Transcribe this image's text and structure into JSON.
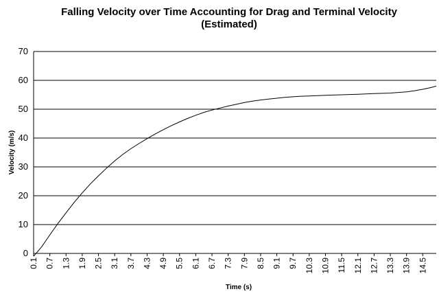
{
  "chart_data": {
    "type": "line",
    "title_line1": "Falling Velocity over Time Accounting for Drag and Terminal Velocity",
    "title_line2": "(Estimated)",
    "xlabel": "Time (s)",
    "ylabel": "Velocity (m/s)",
    "ylim": [
      0,
      70
    ],
    "y_ticks": [
      "0",
      "10",
      "20",
      "30",
      "40",
      "50",
      "60",
      "70"
    ],
    "grid": "horizontal",
    "legend": "none",
    "x_tick_labels": [
      "0.1",
      "0.7",
      "1.3",
      "1.9",
      "2.5",
      "3.1",
      "3.7",
      "4.3",
      "4.9",
      "5.5",
      "6.1",
      "6.7",
      "7.3",
      "7.9",
      "8.5",
      "9.1",
      "9.7",
      "10.3",
      "10.9",
      "11.5",
      "12.1",
      "12.7",
      "13.3",
      "13.9",
      "14.5"
    ],
    "line_color": "#000000",
    "series": [
      {
        "x": [
          0.1,
          0.4,
          0.7,
          1.0,
          1.3,
          1.6,
          1.9,
          2.2,
          2.5,
          2.8,
          3.1,
          3.4,
          3.7,
          4.0,
          4.3,
          4.6,
          4.9,
          5.2,
          5.5,
          5.8,
          6.1,
          6.4,
          6.7,
          7.0,
          7.3,
          7.6,
          7.9,
          8.2,
          8.5,
          8.8,
          9.1,
          9.4,
          9.7,
          10.0,
          10.3,
          10.6,
          10.9,
          11.2,
          11.5,
          11.8,
          12.1,
          12.4,
          12.7,
          13.0,
          13.3,
          13.6,
          13.9,
          14.2,
          14.5,
          14.8,
          15.0
        ],
        "y": [
          -1,
          2.3,
          6.4,
          10.4,
          14.1,
          17.7,
          21.0,
          24.1,
          26.9,
          29.6,
          32.1,
          34.3,
          36.3,
          38.1,
          39.8,
          41.4,
          42.9,
          44.3,
          45.6,
          46.8,
          47.9,
          48.9,
          49.7,
          50.4,
          51.1,
          51.7,
          52.3,
          52.8,
          53.2,
          53.5,
          53.8,
          54.1,
          54.3,
          54.5,
          54.6,
          54.7,
          54.8,
          54.9,
          55.0,
          55.1,
          55.2,
          55.3,
          55.4,
          55.5,
          55.6,
          55.8,
          56.0,
          56.4,
          56.9,
          57.5,
          58.0
        ]
      }
    ]
  }
}
